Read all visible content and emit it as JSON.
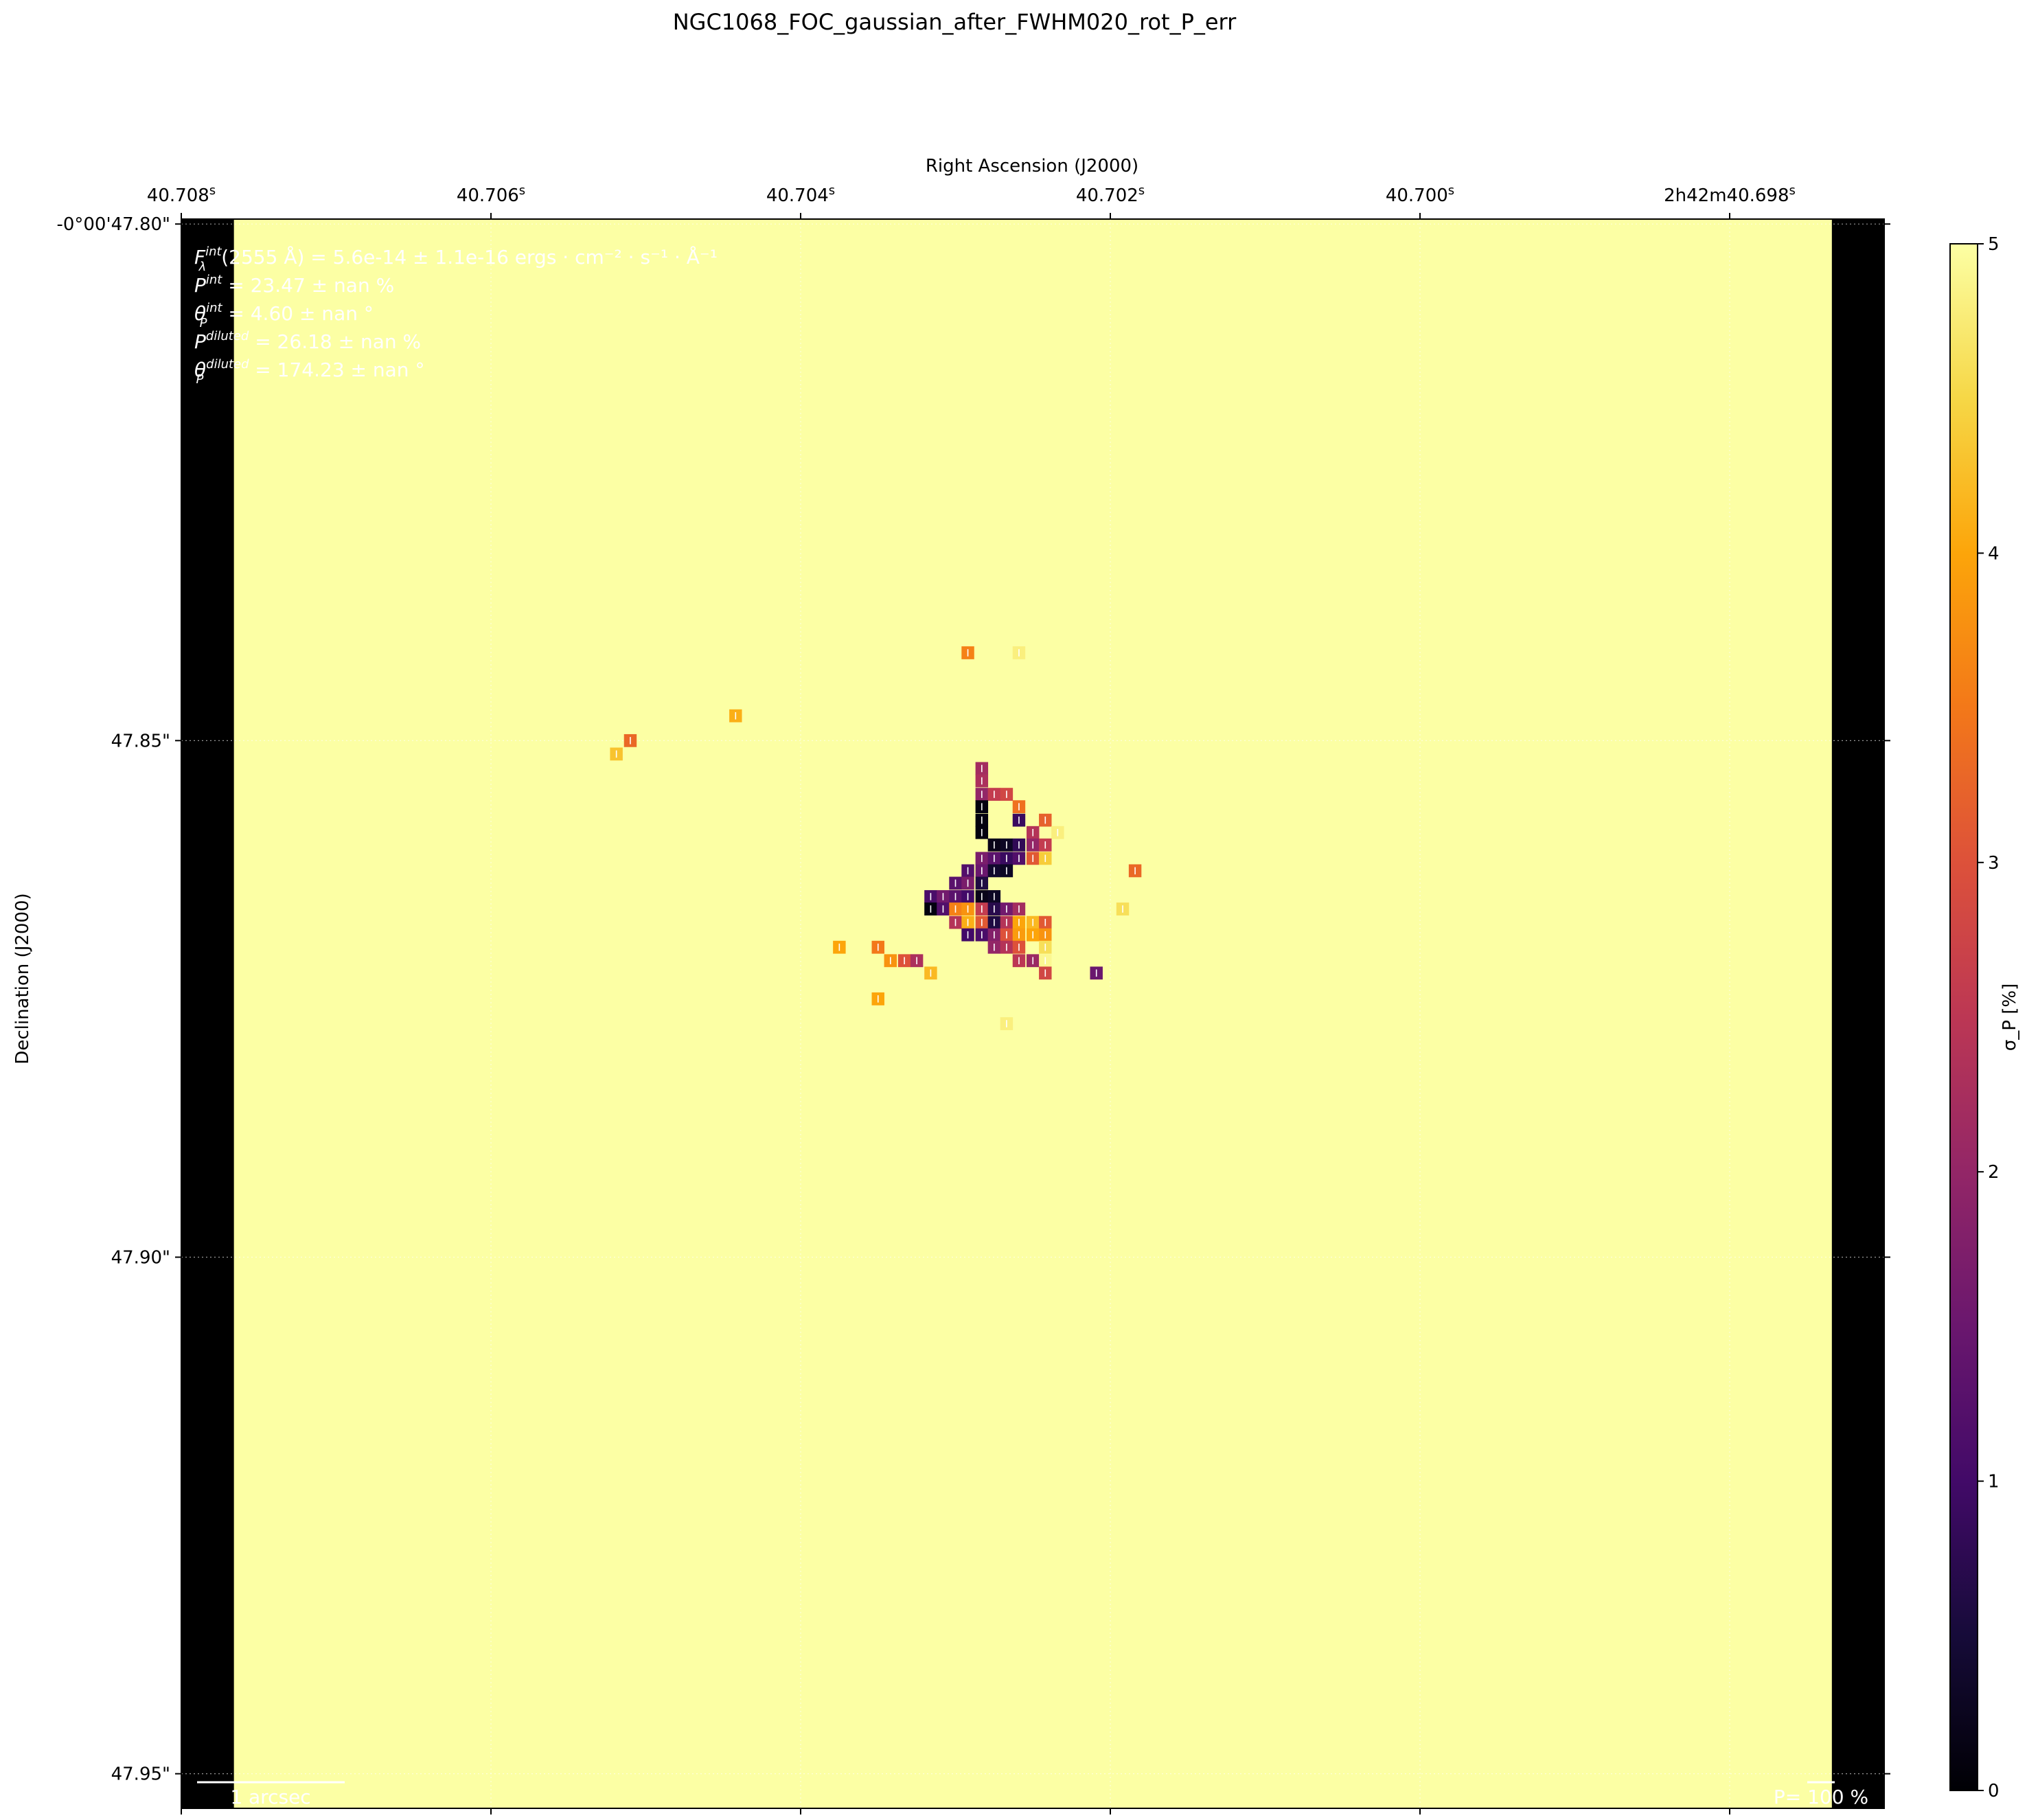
{
  "chart_data": {
    "type": "heatmap",
    "title": "NGC1068_FOC_gaussian_after_FWHM020_rot_P_err",
    "xlabel": "Right Ascension (J2000)",
    "ylabel": "Declination (J2000)",
    "x_ticks": [
      {
        "v": 40.708,
        "label": "40.708",
        "sup": "s"
      },
      {
        "v": 40.706,
        "label": "40.706",
        "sup": "s"
      },
      {
        "v": 40.704,
        "label": "40.704",
        "sup": "s"
      },
      {
        "v": 40.702,
        "label": "40.702",
        "sup": "s"
      },
      {
        "v": 40.7,
        "label": "40.700",
        "sup": "s"
      },
      {
        "v": 40.698,
        "label": "2h42m40.698",
        "sup": "s"
      }
    ],
    "y_ticks": [
      {
        "v": 47.8,
        "label": "-0°00'47.80\""
      },
      {
        "v": 47.85,
        "label": "47.85\""
      },
      {
        "v": 47.9,
        "label": "47.90\""
      },
      {
        "v": 47.95,
        "label": "47.95\""
      }
    ],
    "xlim": [
      40.708,
      40.697
    ],
    "ylim": [
      47.7985,
      47.9532
    ],
    "grid": true,
    "colorbar": {
      "label": "σ_P [%]",
      "range": [
        0,
        5
      ],
      "ticks": [
        0,
        1,
        2,
        3,
        4,
        5
      ],
      "colormap": "inferno"
    },
    "background_value": 5,
    "nodata_color": "#000000",
    "nodata_columns": [
      {
        "ra_from": 40.708,
        "ra_to": 40.70766
      },
      {
        "ra_from": 40.69734,
        "ra_to": 40.697
      }
    ],
    "pixel_size": {
      "dra": 8.18e-05,
      "ddec": 0.00125
    },
    "pixels": [
      {
        "ra": 40.70292,
        "dec": 47.8415,
        "v": 3.6
      },
      {
        "ra": 40.70259,
        "dec": 47.8415,
        "v": 4.8
      },
      {
        "ra": 40.70442,
        "dec": 47.8476,
        "v": 4.1
      },
      {
        "ra": 40.7051,
        "dec": 47.85,
        "v": 3.3
      },
      {
        "ra": 40.70519,
        "dec": 47.8513,
        "v": 4.3
      },
      {
        "ra": 40.70283,
        "dec": 47.8527,
        "v": 2.2
      },
      {
        "ra": 40.70283,
        "dec": 47.8539,
        "v": 2.3
      },
      {
        "ra": 40.70283,
        "dec": 47.8552,
        "v": 2.0
      },
      {
        "ra": 40.70275,
        "dec": 47.8552,
        "v": 2.6
      },
      {
        "ra": 40.70267,
        "dec": 47.8552,
        "v": 2.8
      },
      {
        "ra": 40.70259,
        "dec": 47.8564,
        "v": 3.4
      },
      {
        "ra": 40.70283,
        "dec": 47.8564,
        "v": 0.1
      },
      {
        "ra": 40.70283,
        "dec": 47.8577,
        "v": 0.1
      },
      {
        "ra": 40.70259,
        "dec": 47.8577,
        "v": 0.9
      },
      {
        "ra": 40.70242,
        "dec": 47.8577,
        "v": 3.2
      },
      {
        "ra": 40.70283,
        "dec": 47.8589,
        "v": 0.1
      },
      {
        "ra": 40.7025,
        "dec": 47.8589,
        "v": 2.4
      },
      {
        "ra": 40.70234,
        "dec": 47.8589,
        "v": 4.8
      },
      {
        "ra": 40.70275,
        "dec": 47.8601,
        "v": 0.2
      },
      {
        "ra": 40.70267,
        "dec": 47.8601,
        "v": 0.3
      },
      {
        "ra": 40.70259,
        "dec": 47.8601,
        "v": 0.8
      },
      {
        "ra": 40.7025,
        "dec": 47.8601,
        "v": 2.0
      },
      {
        "ra": 40.70242,
        "dec": 47.8601,
        "v": 2.6
      },
      {
        "ra": 40.70283,
        "dec": 47.8614,
        "v": 1.7
      },
      {
        "ra": 40.70275,
        "dec": 47.8614,
        "v": 1.3
      },
      {
        "ra": 40.70267,
        "dec": 47.8614,
        "v": 0.9
      },
      {
        "ra": 40.70259,
        "dec": 47.8614,
        "v": 1.2
      },
      {
        "ra": 40.7025,
        "dec": 47.8614,
        "v": 3.1
      },
      {
        "ra": 40.70242,
        "dec": 47.8614,
        "v": 4.4
      },
      {
        "ra": 40.70292,
        "dec": 47.8626,
        "v": 1.2
      },
      {
        "ra": 40.70283,
        "dec": 47.8626,
        "v": 1.5
      },
      {
        "ra": 40.70275,
        "dec": 47.8626,
        "v": 0.4
      },
      {
        "ra": 40.70267,
        "dec": 47.8626,
        "v": 0.3
      },
      {
        "ra": 40.70184,
        "dec": 47.8626,
        "v": 3.3
      },
      {
        "ra": 40.703,
        "dec": 47.8638,
        "v": 1.3
      },
      {
        "ra": 40.70292,
        "dec": 47.8638,
        "v": 1.7
      },
      {
        "ra": 40.70283,
        "dec": 47.8638,
        "v": 0.6
      },
      {
        "ra": 40.70316,
        "dec": 47.8651,
        "v": 1.1
      },
      {
        "ra": 40.70308,
        "dec": 47.8651,
        "v": 1.6
      },
      {
        "ra": 40.703,
        "dec": 47.8651,
        "v": 1.3
      },
      {
        "ra": 40.70292,
        "dec": 47.8651,
        "v": 1.0
      },
      {
        "ra": 40.70283,
        "dec": 47.8651,
        "v": 0.2
      },
      {
        "ra": 40.70275,
        "dec": 47.8651,
        "v": 0.3
      },
      {
        "ra": 40.70316,
        "dec": 47.8663,
        "v": 0.1
      },
      {
        "ra": 40.70308,
        "dec": 47.8663,
        "v": 1.2
      },
      {
        "ra": 40.703,
        "dec": 47.8663,
        "v": 3.6
      },
      {
        "ra": 40.70292,
        "dec": 47.8663,
        "v": 3.8
      },
      {
        "ra": 40.70283,
        "dec": 47.8663,
        "v": 2.6
      },
      {
        "ra": 40.70275,
        "dec": 47.8663,
        "v": 0.7
      },
      {
        "ra": 40.70267,
        "dec": 47.8663,
        "v": 1.6
      },
      {
        "ra": 40.70259,
        "dec": 47.8663,
        "v": 2.2
      },
      {
        "ra": 40.70192,
        "dec": 47.8663,
        "v": 4.6
      },
      {
        "ra": 40.703,
        "dec": 47.8676,
        "v": 2.4
      },
      {
        "ra": 40.70292,
        "dec": 47.8676,
        "v": 4.1
      },
      {
        "ra": 40.70283,
        "dec": 47.8676,
        "v": 3.1
      },
      {
        "ra": 40.70275,
        "dec": 47.8676,
        "v": 0.6
      },
      {
        "ra": 40.70267,
        "dec": 47.8676,
        "v": 2.4
      },
      {
        "ra": 40.70259,
        "dec": 47.8676,
        "v": 4.0
      },
      {
        "ra": 40.7025,
        "dec": 47.8676,
        "v": 4.2
      },
      {
        "ra": 40.70242,
        "dec": 47.8676,
        "v": 3.1
      },
      {
        "ra": 40.70292,
        "dec": 47.8688,
        "v": 1.0
      },
      {
        "ra": 40.70283,
        "dec": 47.8688,
        "v": 1.1
      },
      {
        "ra": 40.70275,
        "dec": 47.8688,
        "v": 1.8
      },
      {
        "ra": 40.70267,
        "dec": 47.8688,
        "v": 3.0
      },
      {
        "ra": 40.70259,
        "dec": 47.8688,
        "v": 3.9
      },
      {
        "ra": 40.7025,
        "dec": 47.8688,
        "v": 4.0
      },
      {
        "ra": 40.70242,
        "dec": 47.8688,
        "v": 3.8
      },
      {
        "ra": 40.70375,
        "dec": 47.87,
        "v": 4.0
      },
      {
        "ra": 40.7035,
        "dec": 47.87,
        "v": 3.5
      },
      {
        "ra": 40.70275,
        "dec": 47.87,
        "v": 2.0
      },
      {
        "ra": 40.70267,
        "dec": 47.87,
        "v": 2.4
      },
      {
        "ra": 40.70259,
        "dec": 47.87,
        "v": 3.0
      },
      {
        "ra": 40.70242,
        "dec": 47.87,
        "v": 4.6
      },
      {
        "ra": 40.70342,
        "dec": 47.8713,
        "v": 3.8
      },
      {
        "ra": 40.70333,
        "dec": 47.8713,
        "v": 3.0
      },
      {
        "ra": 40.70325,
        "dec": 47.8713,
        "v": 2.3
      },
      {
        "ra": 40.70259,
        "dec": 47.8713,
        "v": 2.5
      },
      {
        "ra": 40.7025,
        "dec": 47.8713,
        "v": 2.1
      },
      {
        "ra": 40.70242,
        "dec": 47.8713,
        "v": 4.9
      },
      {
        "ra": 40.70316,
        "dec": 47.8725,
        "v": 4.2
      },
      {
        "ra": 40.70242,
        "dec": 47.8725,
        "v": 2.8
      },
      {
        "ra": 40.70209,
        "dec": 47.8725,
        "v": 1.5
      },
      {
        "ra": 40.7035,
        "dec": 47.875,
        "v": 4.0
      },
      {
        "ra": 40.70267,
        "dec": 47.8774,
        "v": 4.8
      }
    ],
    "annotations": [
      {
        "base": "F",
        "sub": "λ",
        "sup": "int",
        "text": "(2555 Å) = 5.6e-14 ± 1.1e-16 ergs · cm⁻² · s⁻¹ · Å⁻¹"
      },
      {
        "base": "P",
        "sub": "",
        "sup": "int",
        "text": " = 23.47 ± nan %"
      },
      {
        "base": "θ",
        "sub": "P",
        "sup": "int",
        "text": " = 4.60 ± nan °"
      },
      {
        "base": "P",
        "sub": "",
        "sup": "diluted",
        "text": " = 26.18 ± nan %"
      },
      {
        "base": "θ",
        "sub": "P",
        "sup": "diluted",
        "text": " = 174.23 ± nan °"
      }
    ],
    "scalebar_label": "1 arcsec",
    "vector_scale_label": "P= 100 %"
  }
}
